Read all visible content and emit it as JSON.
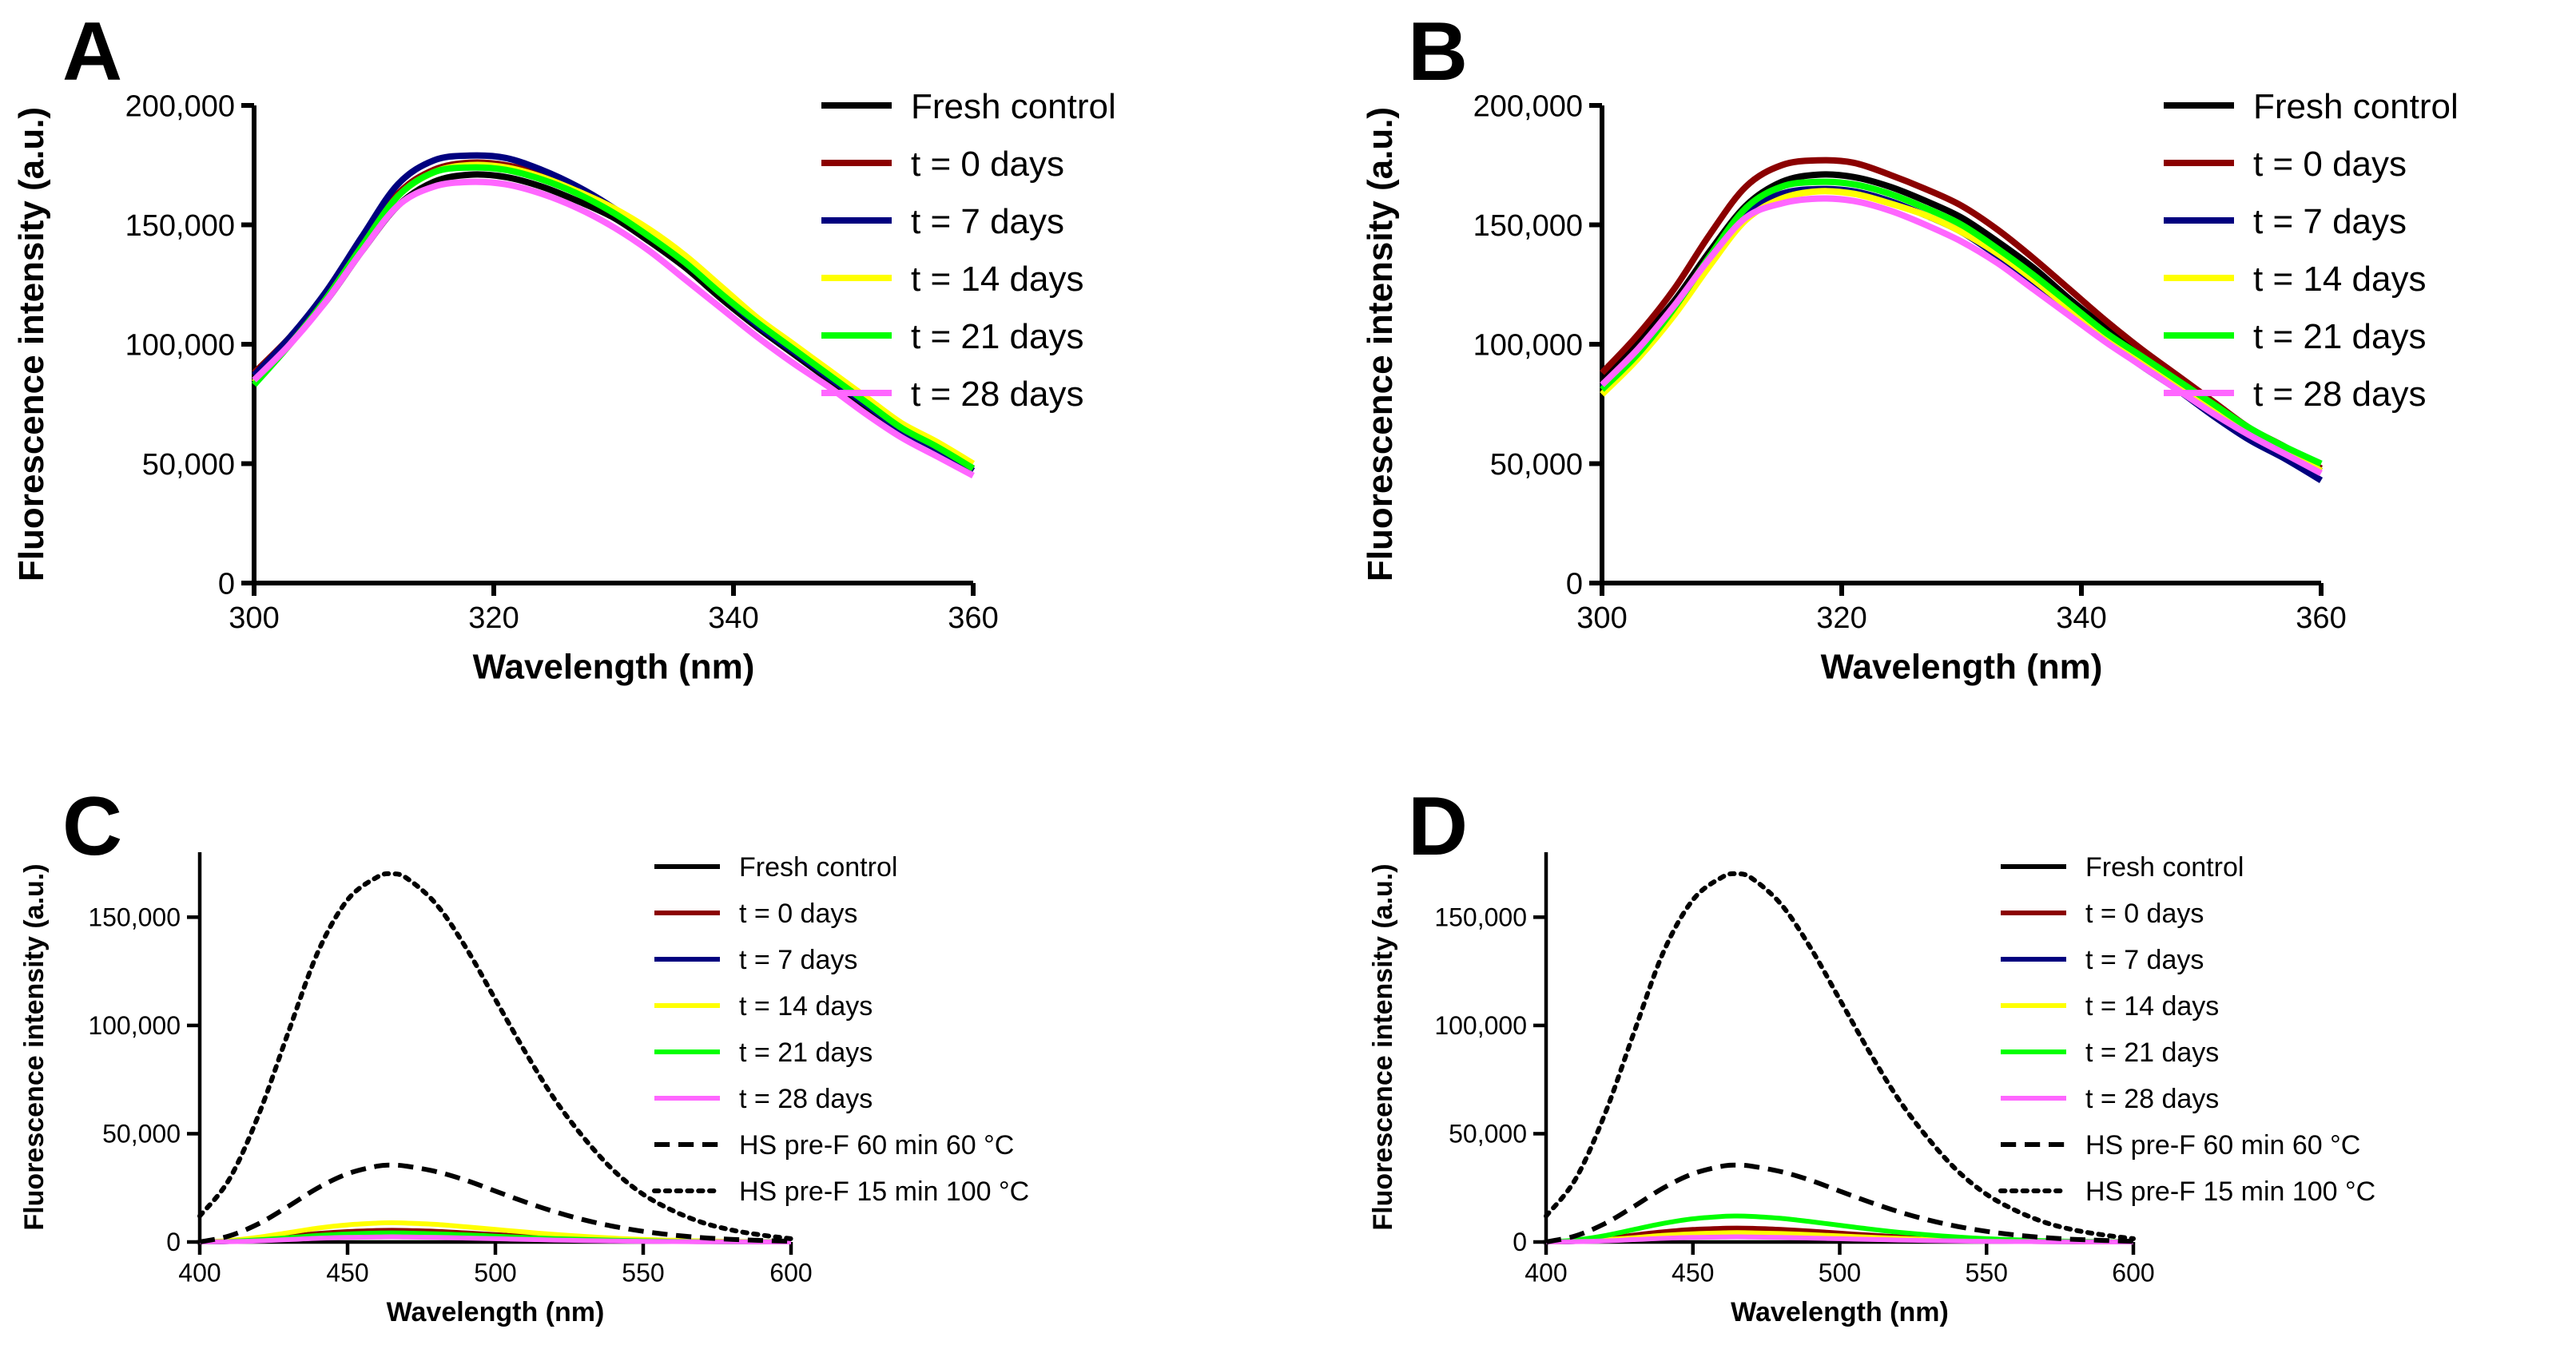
{
  "figure": {
    "panels": [
      "A",
      "B",
      "C",
      "D"
    ]
  },
  "colors": {
    "fresh": "#000000",
    "t0": "#8b0000",
    "t7": "#00007f",
    "t14": "#ffff00",
    "t21": "#00ff00",
    "t28": "#ff66ff"
  },
  "chart_data": [
    {
      "panel": "A",
      "type": "line",
      "xlabel": "Wavelength (nm)",
      "ylabel": "Fluorescence intensity (a.u.)",
      "xlim": [
        300,
        360
      ],
      "ylim": [
        0,
        200000
      ],
      "xticks": [
        300,
        320,
        340,
        360
      ],
      "xtick_labels": [
        "300",
        "320",
        "340",
        "360"
      ],
      "yticks": [
        0,
        50000,
        100000,
        150000,
        200000
      ],
      "ytick_labels": [
        "0",
        "50,000",
        "100,000",
        "150,000",
        "200,000"
      ],
      "legend": "right",
      "x": [
        300,
        303,
        306,
        309,
        312,
        315,
        318,
        321,
        324,
        327,
        330,
        333,
        336,
        339,
        342,
        345,
        348,
        351,
        354,
        357,
        360
      ],
      "series": [
        {
          "name": "Fresh control",
          "color_key": "fresh",
          "dash": "solid",
          "values": [
            86000,
            101000,
            118000,
            139000,
            158000,
            168000,
            171000,
            170000,
            166000,
            160000,
            153000,
            143000,
            132000,
            119000,
            107000,
            96000,
            85000,
            74000,
            64000,
            56000,
            47000
          ]
        },
        {
          "name": "t = 0 days",
          "color_key": "t0",
          "dash": "solid",
          "values": [
            88000,
            103000,
            121000,
            142000,
            163000,
            173000,
            176000,
            175000,
            171000,
            165000,
            157000,
            147000,
            135000,
            122000,
            109000,
            98000,
            87000,
            76000,
            65000,
            57000,
            48000
          ]
        },
        {
          "name": "t = 7 days",
          "color_key": "t7",
          "dash": "solid",
          "values": [
            87000,
            103000,
            122000,
            145000,
            167000,
            177000,
            179000,
            178000,
            173000,
            166000,
            157000,
            146000,
            134000,
            121000,
            108000,
            97000,
            86000,
            75000,
            64000,
            56000,
            47000
          ]
        },
        {
          "name": "t = 14 days",
          "color_key": "t14",
          "dash": "solid",
          "values": [
            84000,
            100000,
            119000,
            141000,
            162000,
            172000,
            175000,
            174000,
            170000,
            164000,
            157000,
            148000,
            137000,
            124000,
            111000,
            100000,
            89000,
            78000,
            67000,
            59000,
            50000
          ]
        },
        {
          "name": "t = 21 days",
          "color_key": "t21",
          "dash": "solid",
          "values": [
            83000,
            100000,
            119000,
            141000,
            162000,
            172000,
            174000,
            173000,
            169000,
            163000,
            155000,
            145000,
            134000,
            121000,
            109000,
            98000,
            87000,
            76000,
            65000,
            57000,
            48000
          ]
        },
        {
          "name": "t = 28 days",
          "color_key": "t28",
          "dash": "solid",
          "values": [
            85000,
            100000,
            118000,
            139000,
            158000,
            166000,
            168000,
            167000,
            163000,
            157000,
            149000,
            139000,
            127000,
            115000,
            103000,
            92000,
            82000,
            71000,
            61000,
            53000,
            45000
          ]
        }
      ]
    },
    {
      "panel": "B",
      "type": "line",
      "xlabel": "Wavelength (nm)",
      "ylabel": "Fluorescence intensity (a.u.)",
      "xlim": [
        300,
        360
      ],
      "ylim": [
        0,
        200000
      ],
      "xticks": [
        300,
        320,
        340,
        360
      ],
      "xtick_labels": [
        "300",
        "320",
        "340",
        "360"
      ],
      "yticks": [
        0,
        50000,
        100000,
        150000,
        200000
      ],
      "ytick_labels": [
        "0",
        "50,000",
        "100,000",
        "150,000",
        "200,000"
      ],
      "legend": "right",
      "x": [
        300,
        303,
        306,
        309,
        312,
        315,
        318,
        321,
        324,
        327,
        330,
        333,
        336,
        339,
        342,
        345,
        348,
        351,
        354,
        357,
        360
      ],
      "series": [
        {
          "name": "Fresh control",
          "color_key": "fresh",
          "dash": "solid",
          "values": [
            86000,
            101000,
            118000,
            139000,
            158000,
            168000,
            171000,
            170000,
            166000,
            160000,
            153000,
            143000,
            132000,
            119000,
            107000,
            96000,
            85000,
            74000,
            64000,
            56000,
            47000
          ]
        },
        {
          "name": "t = 0 days",
          "color_key": "t0",
          "dash": "solid",
          "values": [
            88000,
            104000,
            123000,
            146000,
            166000,
            175000,
            177000,
            176000,
            171000,
            165000,
            158000,
            148000,
            136000,
            123000,
            110000,
            98000,
            87000,
            76000,
            65000,
            57000,
            48000
          ]
        },
        {
          "name": "t = 7 days",
          "color_key": "t7",
          "dash": "solid",
          "values": [
            82000,
            97000,
            115000,
            136000,
            155000,
            163000,
            165000,
            164000,
            160000,
            154000,
            147000,
            137000,
            126000,
            114000,
            102000,
            91000,
            81000,
            70000,
            60000,
            52000,
            43000
          ]
        },
        {
          "name": "t = 14 days",
          "color_key": "t14",
          "dash": "solid",
          "values": [
            79000,
            94000,
            112000,
            133000,
            152000,
            161000,
            164000,
            163000,
            159000,
            154000,
            147000,
            138000,
            127000,
            115000,
            104000,
            93000,
            83000,
            73000,
            63000,
            55000,
            47000
          ]
        },
        {
          "name": "t = 21 days",
          "color_key": "t21",
          "dash": "solid",
          "values": [
            81000,
            96000,
            115000,
            137000,
            157000,
            166000,
            168000,
            167000,
            163000,
            157000,
            150000,
            140000,
            129000,
            117000,
            105000,
            95000,
            85000,
            75000,
            65000,
            57000,
            50000
          ]
        },
        {
          "name": "t = 28 days",
          "color_key": "t28",
          "dash": "solid",
          "values": [
            83000,
            98000,
            116000,
            136000,
            153000,
            159000,
            161000,
            160000,
            156000,
            150000,
            143000,
            134000,
            123000,
            112000,
            101000,
            91000,
            81000,
            71000,
            62000,
            54000,
            46000
          ]
        }
      ]
    },
    {
      "panel": "C",
      "type": "line",
      "xlabel": "Wavelength (nm)",
      "ylabel": "Fluorescence intensity (a.u.)",
      "xlim": [
        400,
        600
      ],
      "ylim": [
        0,
        180000
      ],
      "xticks": [
        400,
        450,
        500,
        550,
        600
      ],
      "xtick_labels": [
        "400",
        "450",
        "500",
        "550",
        "600"
      ],
      "yticks": [
        0,
        50000,
        100000,
        150000
      ],
      "ytick_labels": [
        "0",
        "50,000",
        "100,000",
        "150,000"
      ],
      "legend": "right",
      "x": [
        400,
        410,
        420,
        430,
        440,
        450,
        460,
        465,
        470,
        480,
        490,
        500,
        510,
        520,
        530,
        540,
        550,
        560,
        570,
        580,
        590,
        600
      ],
      "series": [
        {
          "name": "Fresh control",
          "color_key": "fresh",
          "dash": "solid",
          "values": [
            0,
            200,
            700,
            1400,
            2200,
            2800,
            3100,
            3200,
            3100,
            2900,
            2500,
            2000,
            1600,
            1200,
            900,
            600,
            400,
            250,
            150,
            100,
            50,
            0
          ]
        },
        {
          "name": "t = 0 days",
          "color_key": "t0",
          "dash": "solid",
          "values": [
            0,
            400,
            1300,
            2600,
            3900,
            4800,
            5300,
            5400,
            5300,
            4900,
            4200,
            3400,
            2700,
            2000,
            1500,
            1000,
            700,
            450,
            300,
            180,
            100,
            50
          ]
        },
        {
          "name": "t = 7 days",
          "color_key": "t7",
          "dash": "solid",
          "values": [
            0,
            200,
            800,
            1600,
            2500,
            3100,
            3400,
            3500,
            3400,
            3200,
            2800,
            2200,
            1800,
            1400,
            1000,
            700,
            450,
            300,
            200,
            100,
            50,
            0
          ]
        },
        {
          "name": "t = 14 days",
          "color_key": "t14",
          "dash": "solid",
          "values": [
            0,
            700,
            2200,
            4300,
            6400,
            7900,
            8700,
            8900,
            8700,
            8100,
            7000,
            5800,
            4600,
            3500,
            2600,
            1800,
            1200,
            800,
            500,
            300,
            150,
            50
          ]
        },
        {
          "name": "t = 21 days",
          "color_key": "t21",
          "dash": "solid",
          "values": [
            0,
            300,
            1000,
            2000,
            3000,
            3700,
            4100,
            4200,
            4100,
            3800,
            3300,
            2700,
            2100,
            1600,
            1200,
            800,
            550,
            350,
            200,
            120,
            60,
            0
          ]
        },
        {
          "name": "t = 28 days",
          "color_key": "t28",
          "dash": "solid",
          "values": [
            0,
            150,
            500,
            1100,
            1700,
            2100,
            2300,
            2400,
            2300,
            2100,
            1800,
            1500,
            1200,
            900,
            650,
            450,
            300,
            200,
            120,
            70,
            30,
            0
          ]
        },
        {
          "name": "HS pre-F 60 min 60 °C",
          "color_key": "fresh",
          "dash": "dashed",
          "values": [
            0,
            2800,
            8500,
            16500,
            25000,
            31500,
            35000,
            35500,
            35000,
            32500,
            28500,
            23500,
            18500,
            14000,
            10200,
            7200,
            4900,
            3200,
            2000,
            1200,
            700,
            300
          ]
        },
        {
          "name": "HS pre-F 15 min 100 °C",
          "color_key": "fresh",
          "dash": "dotted",
          "values": [
            12000,
            29000,
            59000,
            97000,
            134000,
            158000,
            168500,
            170000,
            168000,
            156000,
            136000,
            112000,
            88000,
            66000,
            48000,
            33000,
            22000,
            14500,
            9000,
            5500,
            3200,
            1500
          ]
        }
      ]
    },
    {
      "panel": "D",
      "type": "line",
      "xlabel": "Wavelength (nm)",
      "ylabel": "Fluorescence intensity (a.u.)",
      "xlim": [
        400,
        600
      ],
      "ylim": [
        0,
        180000
      ],
      "xticks": [
        400,
        450,
        500,
        550,
        600
      ],
      "xtick_labels": [
        "400",
        "450",
        "500",
        "550",
        "600"
      ],
      "yticks": [
        0,
        50000,
        100000,
        150000
      ],
      "ytick_labels": [
        "0",
        "50,000",
        "100,000",
        "150,000"
      ],
      "legend": "right",
      "x": [
        400,
        410,
        420,
        430,
        440,
        450,
        460,
        465,
        470,
        480,
        490,
        500,
        510,
        520,
        530,
        540,
        550,
        560,
        570,
        580,
        590,
        600
      ],
      "series": [
        {
          "name": "Fresh control",
          "color_key": "fresh",
          "dash": "solid",
          "values": [
            0,
            200,
            700,
            1400,
            2200,
            2800,
            3100,
            3200,
            3100,
            2900,
            2500,
            2000,
            1600,
            1200,
            900,
            600,
            400,
            250,
            150,
            100,
            50,
            0
          ]
        },
        {
          "name": "t = 0 days",
          "color_key": "t0",
          "dash": "solid",
          "values": [
            0,
            500,
            1600,
            3200,
            4700,
            5800,
            6300,
            6400,
            6300,
            5800,
            5000,
            4100,
            3200,
            2400,
            1800,
            1200,
            800,
            500,
            300,
            200,
            100,
            50
          ]
        },
        {
          "name": "t = 7 days",
          "color_key": "t7",
          "dash": "solid",
          "values": [
            0,
            200,
            800,
            1600,
            2500,
            3100,
            3400,
            3500,
            3400,
            3200,
            2800,
            2200,
            1800,
            1400,
            1000,
            700,
            450,
            300,
            200,
            100,
            50,
            0
          ]
        },
        {
          "name": "t = 14 days",
          "color_key": "t14",
          "dash": "solid",
          "values": [
            0,
            300,
            1000,
            2000,
            3100,
            3800,
            4200,
            4300,
            4200,
            3900,
            3400,
            2800,
            2200,
            1700,
            1200,
            850,
            550,
            350,
            220,
            130,
            60,
            0
          ]
        },
        {
          "name": "t = 21 days",
          "color_key": "t21",
          "dash": "solid",
          "values": [
            0,
            900,
            2900,
            5800,
            8600,
            10700,
            11800,
            12000,
            11800,
            10900,
            9400,
            7700,
            6000,
            4500,
            3300,
            2300,
            1500,
            1000,
            600,
            350,
            180,
            80
          ]
        },
        {
          "name": "t = 28 days",
          "color_key": "t28",
          "dash": "solid",
          "values": [
            0,
            150,
            500,
            1100,
            1700,
            2100,
            2300,
            2400,
            2300,
            2100,
            1800,
            1500,
            1200,
            900,
            650,
            450,
            300,
            200,
            120,
            70,
            30,
            0
          ]
        },
        {
          "name": "HS pre-F 60 min 60 °C",
          "color_key": "fresh",
          "dash": "dashed",
          "values": [
            0,
            2800,
            8500,
            16500,
            25000,
            31500,
            35000,
            35500,
            35000,
            32500,
            28500,
            23500,
            18500,
            14000,
            10200,
            7200,
            4900,
            3200,
            2000,
            1200,
            700,
            300
          ]
        },
        {
          "name": "HS pre-F 15 min 100 °C",
          "color_key": "fresh",
          "dash": "dotted",
          "values": [
            12000,
            29000,
            59000,
            97000,
            134000,
            158000,
            168500,
            170000,
            168000,
            156000,
            136000,
            112000,
            88000,
            66000,
            48000,
            33000,
            22000,
            14500,
            9000,
            5500,
            3200,
            1500
          ]
        }
      ]
    }
  ]
}
